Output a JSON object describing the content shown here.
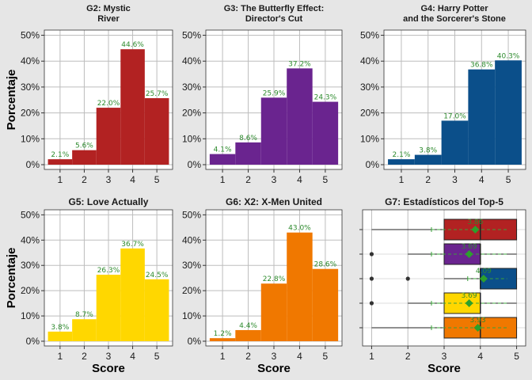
{
  "colors": {
    "background": "#e6e6e6",
    "panel": "#ffffff",
    "grid": "#bdbdbd",
    "label_green": "#2e8b2e",
    "mean_marker": "#2ca02c"
  },
  "chart_data": [
    {
      "type": "bar",
      "title": "G2: Mystic\nRiver",
      "color": "#b22222",
      "categories": [
        "1",
        "2",
        "3",
        "4",
        "5"
      ],
      "values": [
        2.1,
        5.6,
        22.0,
        44.6,
        25.7
      ],
      "value_labels": [
        "2.1%",
        "5.6%",
        "22.0%",
        "44.6%",
        "25.7%"
      ],
      "ylabel": "Porcentaje",
      "xlabel": "",
      "ylim": [
        0,
        52
      ],
      "yticks": [
        "0%",
        "10%",
        "20%",
        "30%",
        "40%",
        "50%"
      ],
      "grid": true
    },
    {
      "type": "bar",
      "title": "G3: The Butterfly Effect:\nDirector's Cut",
      "color": "#6a248f",
      "categories": [
        "1",
        "2",
        "3",
        "4",
        "5"
      ],
      "values": [
        4.1,
        8.6,
        25.9,
        37.2,
        24.3
      ],
      "value_labels": [
        "4.1%",
        "8.6%",
        "25.9%",
        "37.2%",
        "24.3%"
      ],
      "ylabel": "",
      "xlabel": "",
      "ylim": [
        0,
        52
      ],
      "yticks": [
        "0%",
        "10%",
        "20%",
        "30%",
        "40%",
        "50%"
      ],
      "grid": true
    },
    {
      "type": "bar",
      "title": "G4: Harry Potter\nand the Sorcerer's Stone",
      "color": "#0b4f8a",
      "categories": [
        "1",
        "2",
        "3",
        "4",
        "5"
      ],
      "values": [
        2.1,
        3.8,
        17.0,
        36.8,
        40.3
      ],
      "value_labels": [
        "2.1%",
        "3.8%",
        "17.0%",
        "36.8%",
        "40.3%"
      ],
      "ylabel": "",
      "xlabel": "",
      "ylim": [
        0,
        52
      ],
      "yticks": [
        "0%",
        "10%",
        "20%",
        "30%",
        "40%",
        "50%"
      ],
      "grid": true
    },
    {
      "type": "bar",
      "title": "G5: Love Actually",
      "color": "#ffd700",
      "categories": [
        "1",
        "2",
        "3",
        "4",
        "5"
      ],
      "values": [
        3.8,
        8.7,
        26.3,
        36.7,
        24.5
      ],
      "value_labels": [
        "3.8%",
        "8.7%",
        "26.3%",
        "36.7%",
        "24.5%"
      ],
      "ylabel": "Porcentaje",
      "xlabel": "Score",
      "ylim": [
        0,
        52
      ],
      "yticks": [
        "0%",
        "10%",
        "20%",
        "30%",
        "40%",
        "50%"
      ],
      "grid": true
    },
    {
      "type": "bar",
      "title": "G6: X2: X-Men United",
      "color": "#f07800",
      "categories": [
        "1",
        "2",
        "3",
        "4",
        "5"
      ],
      "values": [
        1.2,
        4.4,
        22.8,
        43.0,
        28.6
      ],
      "value_labels": [
        "1.2%",
        "4.4%",
        "22.8%",
        "43.0%",
        "28.6%"
      ],
      "ylabel": "",
      "xlabel": "Score",
      "ylim": [
        0,
        52
      ],
      "yticks": [
        "0%",
        "10%",
        "20%",
        "30%",
        "40%",
        "50%"
      ],
      "grid": true
    },
    {
      "type": "box",
      "title": "G7: Estadísticos del Top-5",
      "xlabel": "Score",
      "xlim": [
        0.75,
        5.25
      ],
      "xticks": [
        "1",
        "2",
        "3",
        "4",
        "5"
      ],
      "grid": true,
      "boxes": [
        {
          "color": "#f07800",
          "whisker_low": 1,
          "q1": 3,
          "median": 4,
          "q3": 5,
          "whisker_high": 5,
          "outliers": [],
          "mean": 3.93,
          "mean_label": "3.93"
        },
        {
          "color": "#ffd700",
          "whisker_low": 2,
          "q1": 3,
          "median": 4,
          "q3": 4,
          "whisker_high": 5,
          "outliers": [
            1
          ],
          "mean": 3.69,
          "mean_label": "3.69"
        },
        {
          "color": "#0b4f8a",
          "whisker_low": 3,
          "q1": 4,
          "median": 4,
          "q3": 5,
          "whisker_high": 5,
          "outliers": [
            1,
            2
          ],
          "mean": 4.09,
          "mean_label": "4.09"
        },
        {
          "color": "#6a248f",
          "whisker_low": 2,
          "q1": 3,
          "median": 4,
          "q3": 4,
          "whisker_high": 5,
          "outliers": [
            1
          ],
          "mean": 3.69,
          "mean_label": "3.69"
        },
        {
          "color": "#b22222",
          "whisker_low": 1,
          "q1": 3,
          "median": 4,
          "q3": 5,
          "whisker_high": 5,
          "outliers": [],
          "mean": 3.86,
          "mean_label": "3.86"
        }
      ]
    }
  ]
}
